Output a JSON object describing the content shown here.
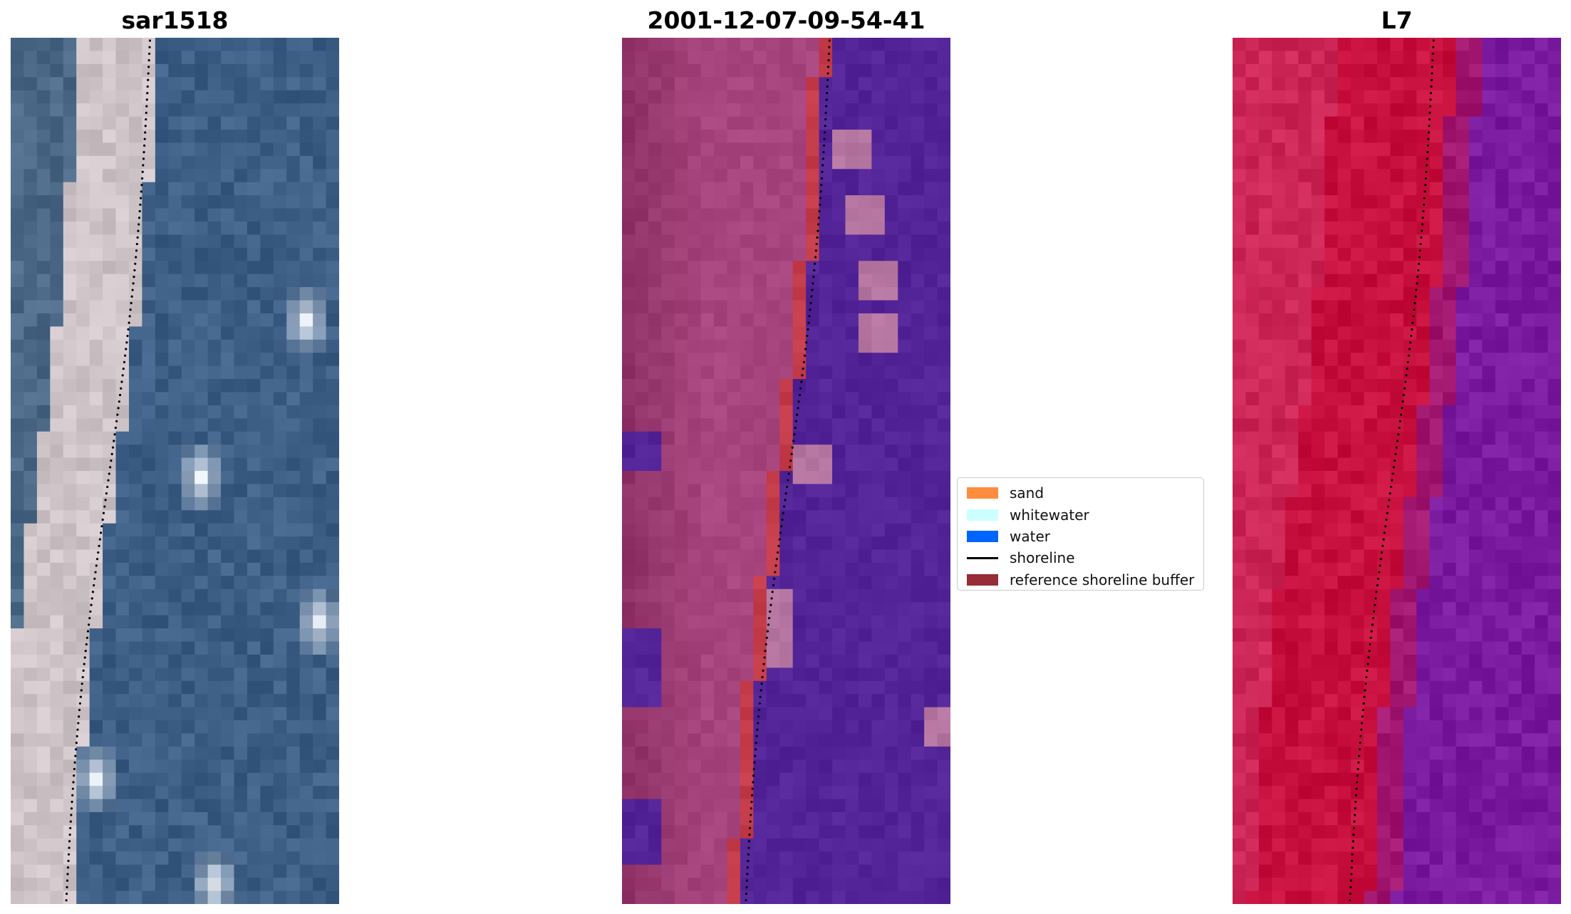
{
  "titles": {
    "rgb": "sar1518",
    "classification": "2001-12-07-09-54-41",
    "satellite": "L7"
  },
  "legend": {
    "items": [
      {
        "label": "sand",
        "type": "patch",
        "color": "#ff8c3f"
      },
      {
        "label": "whitewater",
        "type": "patch",
        "color": "#ccffff"
      },
      {
        "label": "water",
        "type": "patch",
        "color": "#0064ff"
      },
      {
        "label": "shoreline",
        "type": "line",
        "color": "#000000"
      },
      {
        "label": "reference shoreline buffer",
        "type": "patch",
        "color": "#962d37"
      }
    ]
  },
  "colors": {
    "rgb_land": "#cfc3c7",
    "rgb_water": "#3e5f85",
    "class_water": "#532497",
    "class_land": "#a7457e",
    "class_buffer": "#c43b4a",
    "sat_land": "#c8103f",
    "sat_water": "#7a1b9f"
  }
}
